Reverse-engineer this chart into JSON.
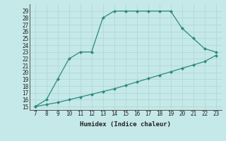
{
  "xlabel": "Humidex (Indice chaleur)",
  "x_upper": [
    7,
    8,
    9,
    10,
    11,
    12,
    13,
    14,
    15,
    16,
    17,
    18,
    19,
    20,
    21,
    22,
    23
  ],
  "y_upper": [
    15,
    16,
    19,
    22,
    23,
    23,
    28,
    29,
    29,
    29,
    29,
    29,
    29,
    26.5,
    25,
    23.5,
    23
  ],
  "x_lower": [
    7,
    8,
    9,
    10,
    11,
    12,
    13,
    14,
    15,
    16,
    17,
    18,
    19,
    20,
    21,
    22,
    23
  ],
  "y_lower": [
    15,
    15.3,
    15.6,
    16.0,
    16.4,
    16.8,
    17.2,
    17.6,
    18.1,
    18.6,
    19.1,
    19.6,
    20.1,
    20.6,
    21.1,
    21.6,
    22.5
  ],
  "line_color": "#2e8b7a",
  "bg_color": "#c5e8e8",
  "grid_color": "#aed4d4",
  "xlim": [
    6.5,
    23.5
  ],
  "ylim": [
    14.5,
    30.0
  ],
  "yticks": [
    15,
    16,
    17,
    18,
    19,
    20,
    21,
    22,
    23,
    24,
    25,
    26,
    27,
    28,
    29
  ],
  "xticks": [
    7,
    8,
    9,
    10,
    11,
    12,
    13,
    14,
    15,
    16,
    17,
    18,
    19,
    20,
    21,
    22,
    23
  ],
  "marker": "D",
  "markersize": 2.5,
  "linewidth": 0.9,
  "tick_fontsize": 5.5,
  "xlabel_fontsize": 6.5
}
